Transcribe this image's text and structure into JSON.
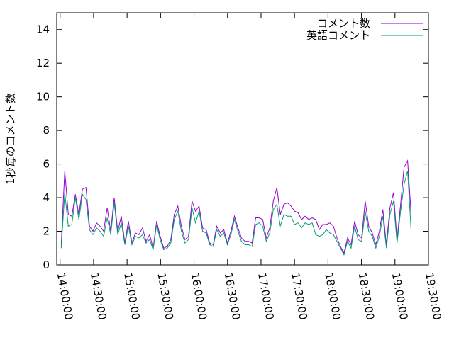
{
  "chart_data": {
    "type": "line",
    "y_label": "1秒毎のコメント数",
    "xlim": [
      "13:57:00",
      "19:30:00"
    ],
    "xticks": [
      "14:00:00",
      "14:30:00",
      "15:00:00",
      "15:30:00",
      "16:00:00",
      "16:30:00",
      "17:00:00",
      "17:30:00",
      "18:00:00",
      "18:30:00",
      "19:00:00",
      "19:30:00"
    ],
    "ylim": [
      0,
      15
    ],
    "yticks": [
      0,
      2,
      4,
      6,
      8,
      10,
      12,
      14
    ],
    "legend": "top-right",
    "x": [
      "14:01:00",
      "14:04:10",
      "14:07:20",
      "14:10:30",
      "14:13:40",
      "14:16:50",
      "14:20:00",
      "14:23:10",
      "14:26:20",
      "14:29:30",
      "14:32:40",
      "14:35:50",
      "14:39:00",
      "14:42:10",
      "14:45:20",
      "14:48:30",
      "14:51:40",
      "14:54:50",
      "14:58:00",
      "15:01:10",
      "15:04:20",
      "15:07:30",
      "15:10:40",
      "15:13:50",
      "15:17:00",
      "15:20:10",
      "15:23:20",
      "15:26:30",
      "15:29:40",
      "15:32:50",
      "15:36:00",
      "15:39:10",
      "15:42:20",
      "15:45:30",
      "15:48:40",
      "15:51:50",
      "15:55:00",
      "15:58:10",
      "16:01:20",
      "16:04:30",
      "16:07:40",
      "16:10:50",
      "16:14:00",
      "16:17:10",
      "16:20:20",
      "16:23:30",
      "16:26:40",
      "16:29:50",
      "16:33:00",
      "16:36:10",
      "16:39:20",
      "16:42:30",
      "16:45:40",
      "16:48:50",
      "16:52:00",
      "16:55:10",
      "16:58:20",
      "17:01:30",
      "17:04:40",
      "17:07:50",
      "17:11:00",
      "17:14:10",
      "17:17:20",
      "17:20:30",
      "17:23:40",
      "17:26:50",
      "17:30:00",
      "17:33:10",
      "17:36:20",
      "17:39:30",
      "17:42:40",
      "17:45:50",
      "17:49:00",
      "17:52:10",
      "17:55:20",
      "17:58:30",
      "18:01:40",
      "18:04:50",
      "18:08:00",
      "18:11:10",
      "18:14:20",
      "18:17:30",
      "18:20:40",
      "18:23:50",
      "18:27:00",
      "18:30:10",
      "18:33:20",
      "18:36:30",
      "18:39:40",
      "18:42:50",
      "18:46:00",
      "18:49:10",
      "18:52:20",
      "18:55:30",
      "18:58:40",
      "19:01:50",
      "19:05:00",
      "19:08:10",
      "19:11:20",
      "19:14:30"
    ],
    "series": [
      {
        "name": "コメント数",
        "color": "#9400d3",
        "values": [
          1.2,
          5.6,
          3.0,
          2.9,
          4.2,
          3.0,
          4.5,
          4.6,
          2.3,
          2.0,
          2.5,
          2.3,
          2.0,
          3.4,
          2.0,
          4.0,
          2.0,
          2.9,
          1.3,
          2.6,
          1.3,
          1.9,
          1.8,
          2.2,
          1.4,
          1.8,
          1.0,
          2.6,
          1.7,
          1.0,
          1.1,
          1.5,
          3.0,
          3.5,
          2.3,
          1.5,
          1.7,
          3.8,
          3.2,
          3.5,
          2.2,
          2.1,
          1.3,
          1.2,
          2.3,
          1.9,
          2.1,
          1.3,
          2.0,
          2.9,
          2.2,
          1.6,
          1.4,
          1.4,
          1.3,
          2.8,
          2.8,
          2.7,
          1.6,
          2.2,
          3.8,
          4.6,
          3.0,
          3.6,
          3.7,
          3.5,
          3.2,
          3.1,
          2.7,
          2.9,
          2.7,
          2.8,
          2.7,
          2.1,
          2.4,
          2.4,
          2.5,
          2.3,
          1.6,
          1.1,
          0.7,
          1.6,
          1.2,
          2.6,
          1.8,
          1.6,
          3.8,
          2.3,
          1.9,
          1.2,
          2.0,
          3.3,
          1.2,
          3.4,
          4.3,
          1.5,
          3.6,
          5.8,
          6.2,
          3.0
        ]
      },
      {
        "name": "英語コメント",
        "color": "#009e73",
        "values": [
          1.0,
          4.3,
          2.3,
          2.4,
          4.0,
          2.7,
          4.2,
          3.9,
          2.1,
          1.8,
          2.2,
          2.0,
          1.7,
          2.8,
          1.8,
          3.7,
          1.8,
          2.5,
          1.2,
          2.3,
          1.2,
          1.7,
          1.6,
          1.8,
          1.3,
          1.5,
          0.9,
          2.4,
          1.5,
          0.9,
          1.0,
          1.3,
          2.7,
          3.2,
          2.0,
          1.3,
          1.5,
          3.4,
          2.5,
          3.2,
          2.0,
          1.9,
          1.2,
          1.1,
          2.1,
          1.7,
          1.9,
          1.2,
          1.8,
          2.7,
          2.0,
          1.4,
          1.2,
          1.2,
          1.1,
          2.4,
          2.5,
          2.3,
          1.4,
          1.9,
          3.3,
          3.6,
          2.3,
          3.0,
          2.9,
          2.9,
          2.4,
          2.5,
          2.2,
          2.5,
          2.4,
          2.5,
          1.8,
          1.7,
          1.8,
          2.1,
          1.9,
          1.8,
          1.4,
          1.0,
          0.6,
          1.4,
          1.0,
          2.3,
          1.5,
          1.4,
          3.2,
          2.0,
          1.7,
          1.0,
          1.7,
          2.9,
          1.0,
          3.0,
          3.8,
          1.3,
          3.2,
          4.8,
          5.6,
          2.0
        ]
      }
    ]
  }
}
